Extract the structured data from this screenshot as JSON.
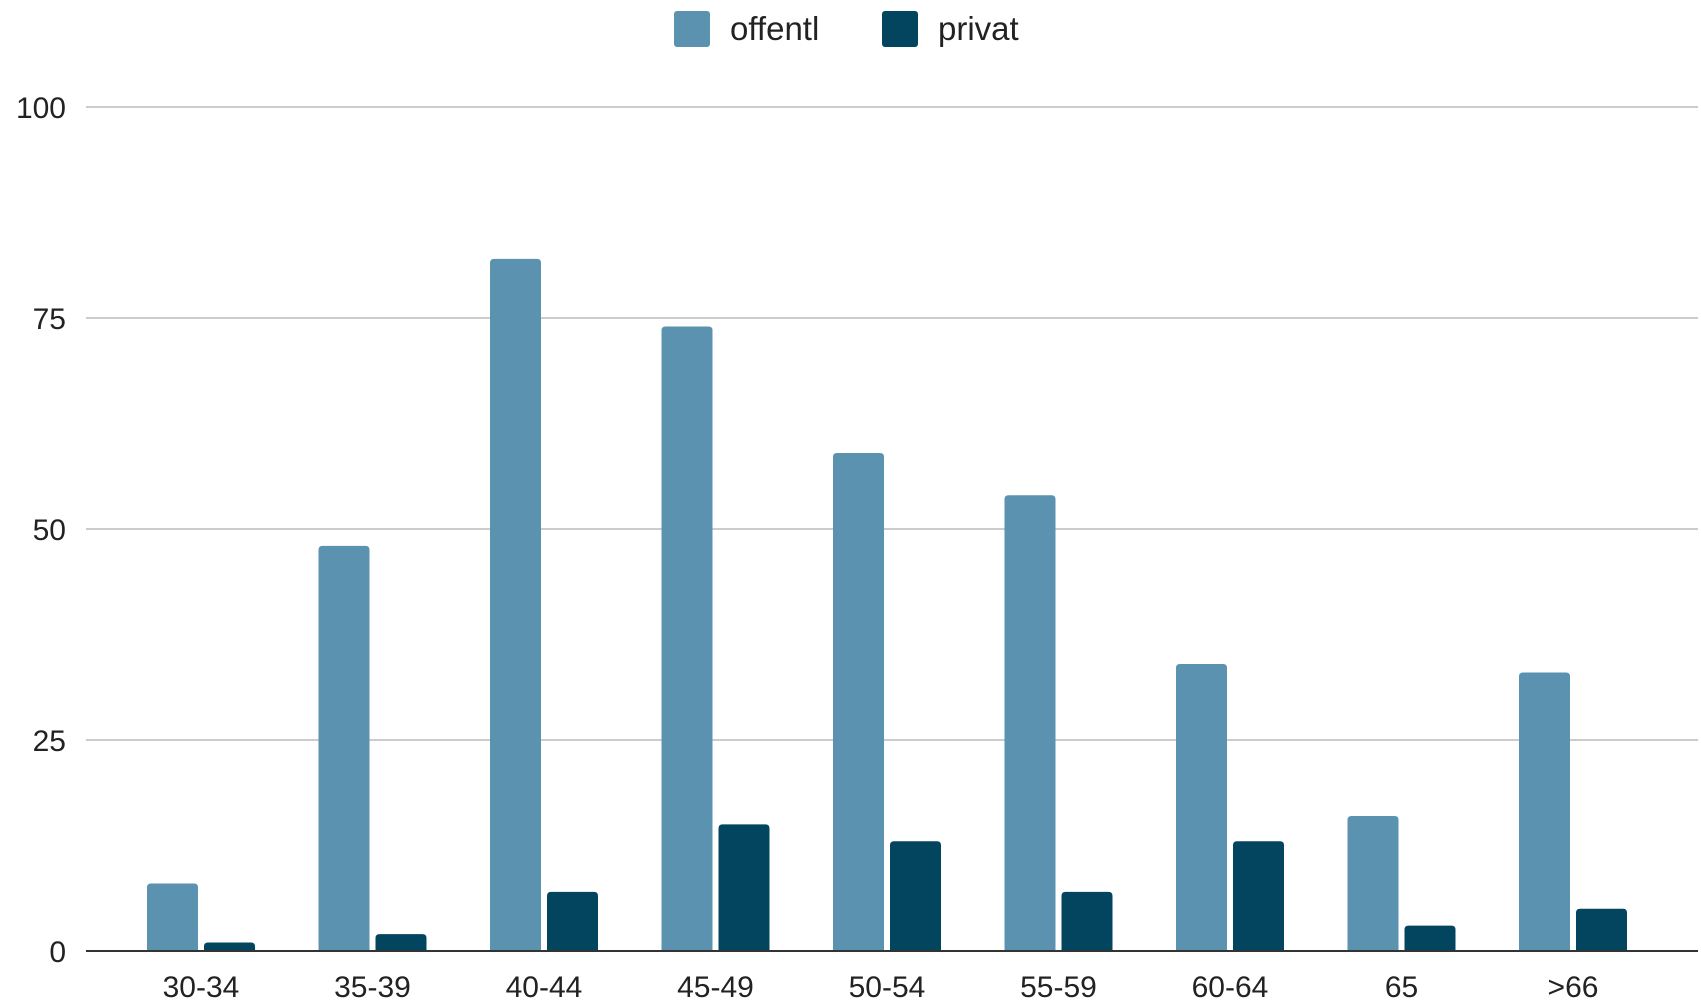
{
  "chart_data": {
    "type": "bar",
    "categories": [
      "30-34",
      "35-39",
      "40-44",
      "45-49",
      "50-54",
      "55-59",
      "60-64",
      "65",
      ">66"
    ],
    "series": [
      {
        "name": "offentl",
        "color": "#5b92b0",
        "values": [
          8,
          48,
          82,
          74,
          59,
          54,
          34,
          16,
          33
        ]
      },
      {
        "name": "privat",
        "color": "#03445f",
        "values": [
          1,
          2,
          7,
          15,
          13,
          7,
          13,
          3,
          5
        ]
      }
    ],
    "ylim": [
      0,
      100
    ],
    "yticks": [
      0,
      25,
      50,
      75,
      100
    ],
    "title": "",
    "xlabel": "",
    "ylabel": "",
    "grid": true,
    "legend_position": "top-center"
  }
}
